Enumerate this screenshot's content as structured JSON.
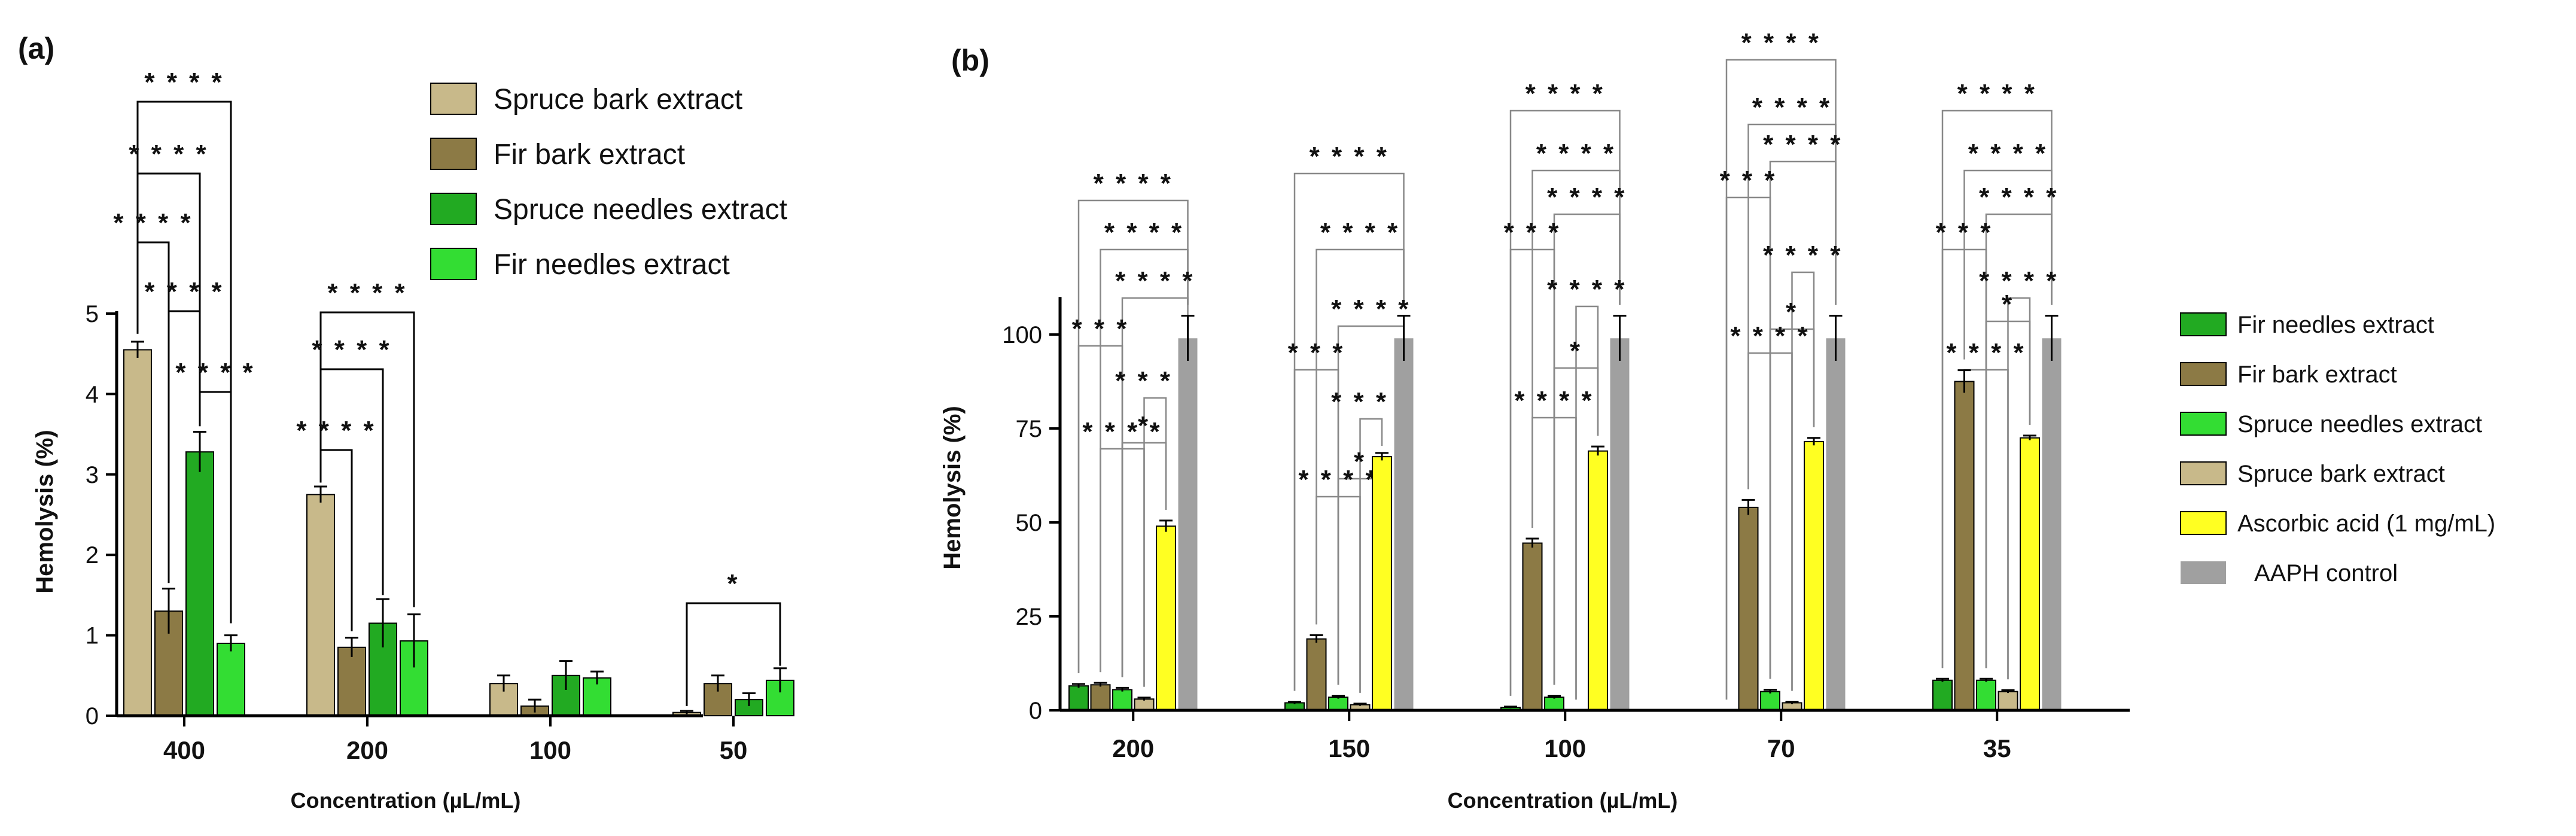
{
  "chart_data": [
    {
      "panel": "(a)",
      "type": "bar",
      "xlabel": "Concentration (µL/mL)",
      "ylabel": "Hemolysis (%)",
      "ylim": [
        0,
        5
      ],
      "yticks": [
        "0",
        "1",
        "2",
        "3",
        "4",
        "5"
      ],
      "categories": [
        "400",
        "200",
        "100",
        "50"
      ],
      "series": [
        {
          "name": "Spruce bark extract",
          "color": "#c8b98a",
          "values": [
            4.55,
            2.75,
            0.4,
            0.04
          ],
          "errors": [
            0.1,
            0.1,
            0.1,
            0.02
          ]
        },
        {
          "name": "Fir bark extract",
          "color": "#8c7a45",
          "values": [
            1.3,
            0.85,
            0.12,
            0.4
          ],
          "errors": [
            0.28,
            0.12,
            0.08,
            0.1
          ]
        },
        {
          "name": "Spruce needles extract",
          "color": "#22aa22",
          "values": [
            3.28,
            1.15,
            0.5,
            0.2
          ],
          "errors": [
            0.25,
            0.3,
            0.18,
            0.08
          ]
        },
        {
          "name": "Fir needles extract",
          "color": "#33dd33",
          "values": [
            0.9,
            0.93,
            0.47,
            0.44
          ],
          "errors": [
            0.1,
            0.33,
            0.08,
            0.15
          ]
        }
      ],
      "significance": [
        "* * * *",
        "* * * *",
        "* * * *",
        "* * * *",
        "* * * *",
        "* * * *",
        "* * * *",
        "* * * *",
        "*"
      ]
    },
    {
      "panel": "(b)",
      "type": "bar",
      "xlabel": "Concentration (µL/mL)",
      "ylabel": "Hemolysis (%)",
      "ylim": [
        0,
        110
      ],
      "yticks": [
        "0",
        "25",
        "50",
        "75",
        "100"
      ],
      "categories": [
        "200",
        "150",
        "100",
        "70",
        "35"
      ],
      "series": [
        {
          "name": "Fir needles extract",
          "color": "#22aa22",
          "values": [
            6.5,
            2,
            0.8,
            0,
            8
          ],
          "errors": [
            0.5,
            0.3,
            0.2,
            0,
            0.4
          ]
        },
        {
          "name": "Fir bark extract",
          "color": "#8c7a45",
          "values": [
            6.8,
            19,
            44.5,
            54,
            87.5
          ],
          "errors": [
            0.5,
            1,
            1.2,
            2,
            3
          ]
        },
        {
          "name": "Spruce needles extract",
          "color": "#33dd33",
          "values": [
            5.5,
            3.5,
            3.5,
            5,
            8
          ],
          "errors": [
            0.5,
            0.4,
            0.4,
            0.5,
            0.4
          ]
        },
        {
          "name": "Spruce bark extract",
          "color": "#c8b98a",
          "values": [
            3,
            1.5,
            0,
            2,
            5
          ],
          "errors": [
            0.4,
            0.3,
            0,
            0.3,
            0.4
          ]
        },
        {
          "name": "Ascorbic acid (1 mg/mL)",
          "color": "#ffff22",
          "values": [
            49,
            67.5,
            69,
            71.5,
            72.5
          ],
          "errors": [
            1.5,
            1,
            1.2,
            1,
            0.6
          ]
        },
        {
          "name": "AAPH control",
          "color": "#a0a0a0",
          "values": [
            99,
            99,
            99,
            99,
            99
          ],
          "errors": [
            6,
            6,
            6,
            6,
            6
          ]
        }
      ],
      "significance": [
        "* * * *",
        "* * *",
        "*",
        "* * * *",
        "*",
        "* * *",
        "* * * *"
      ]
    }
  ]
}
